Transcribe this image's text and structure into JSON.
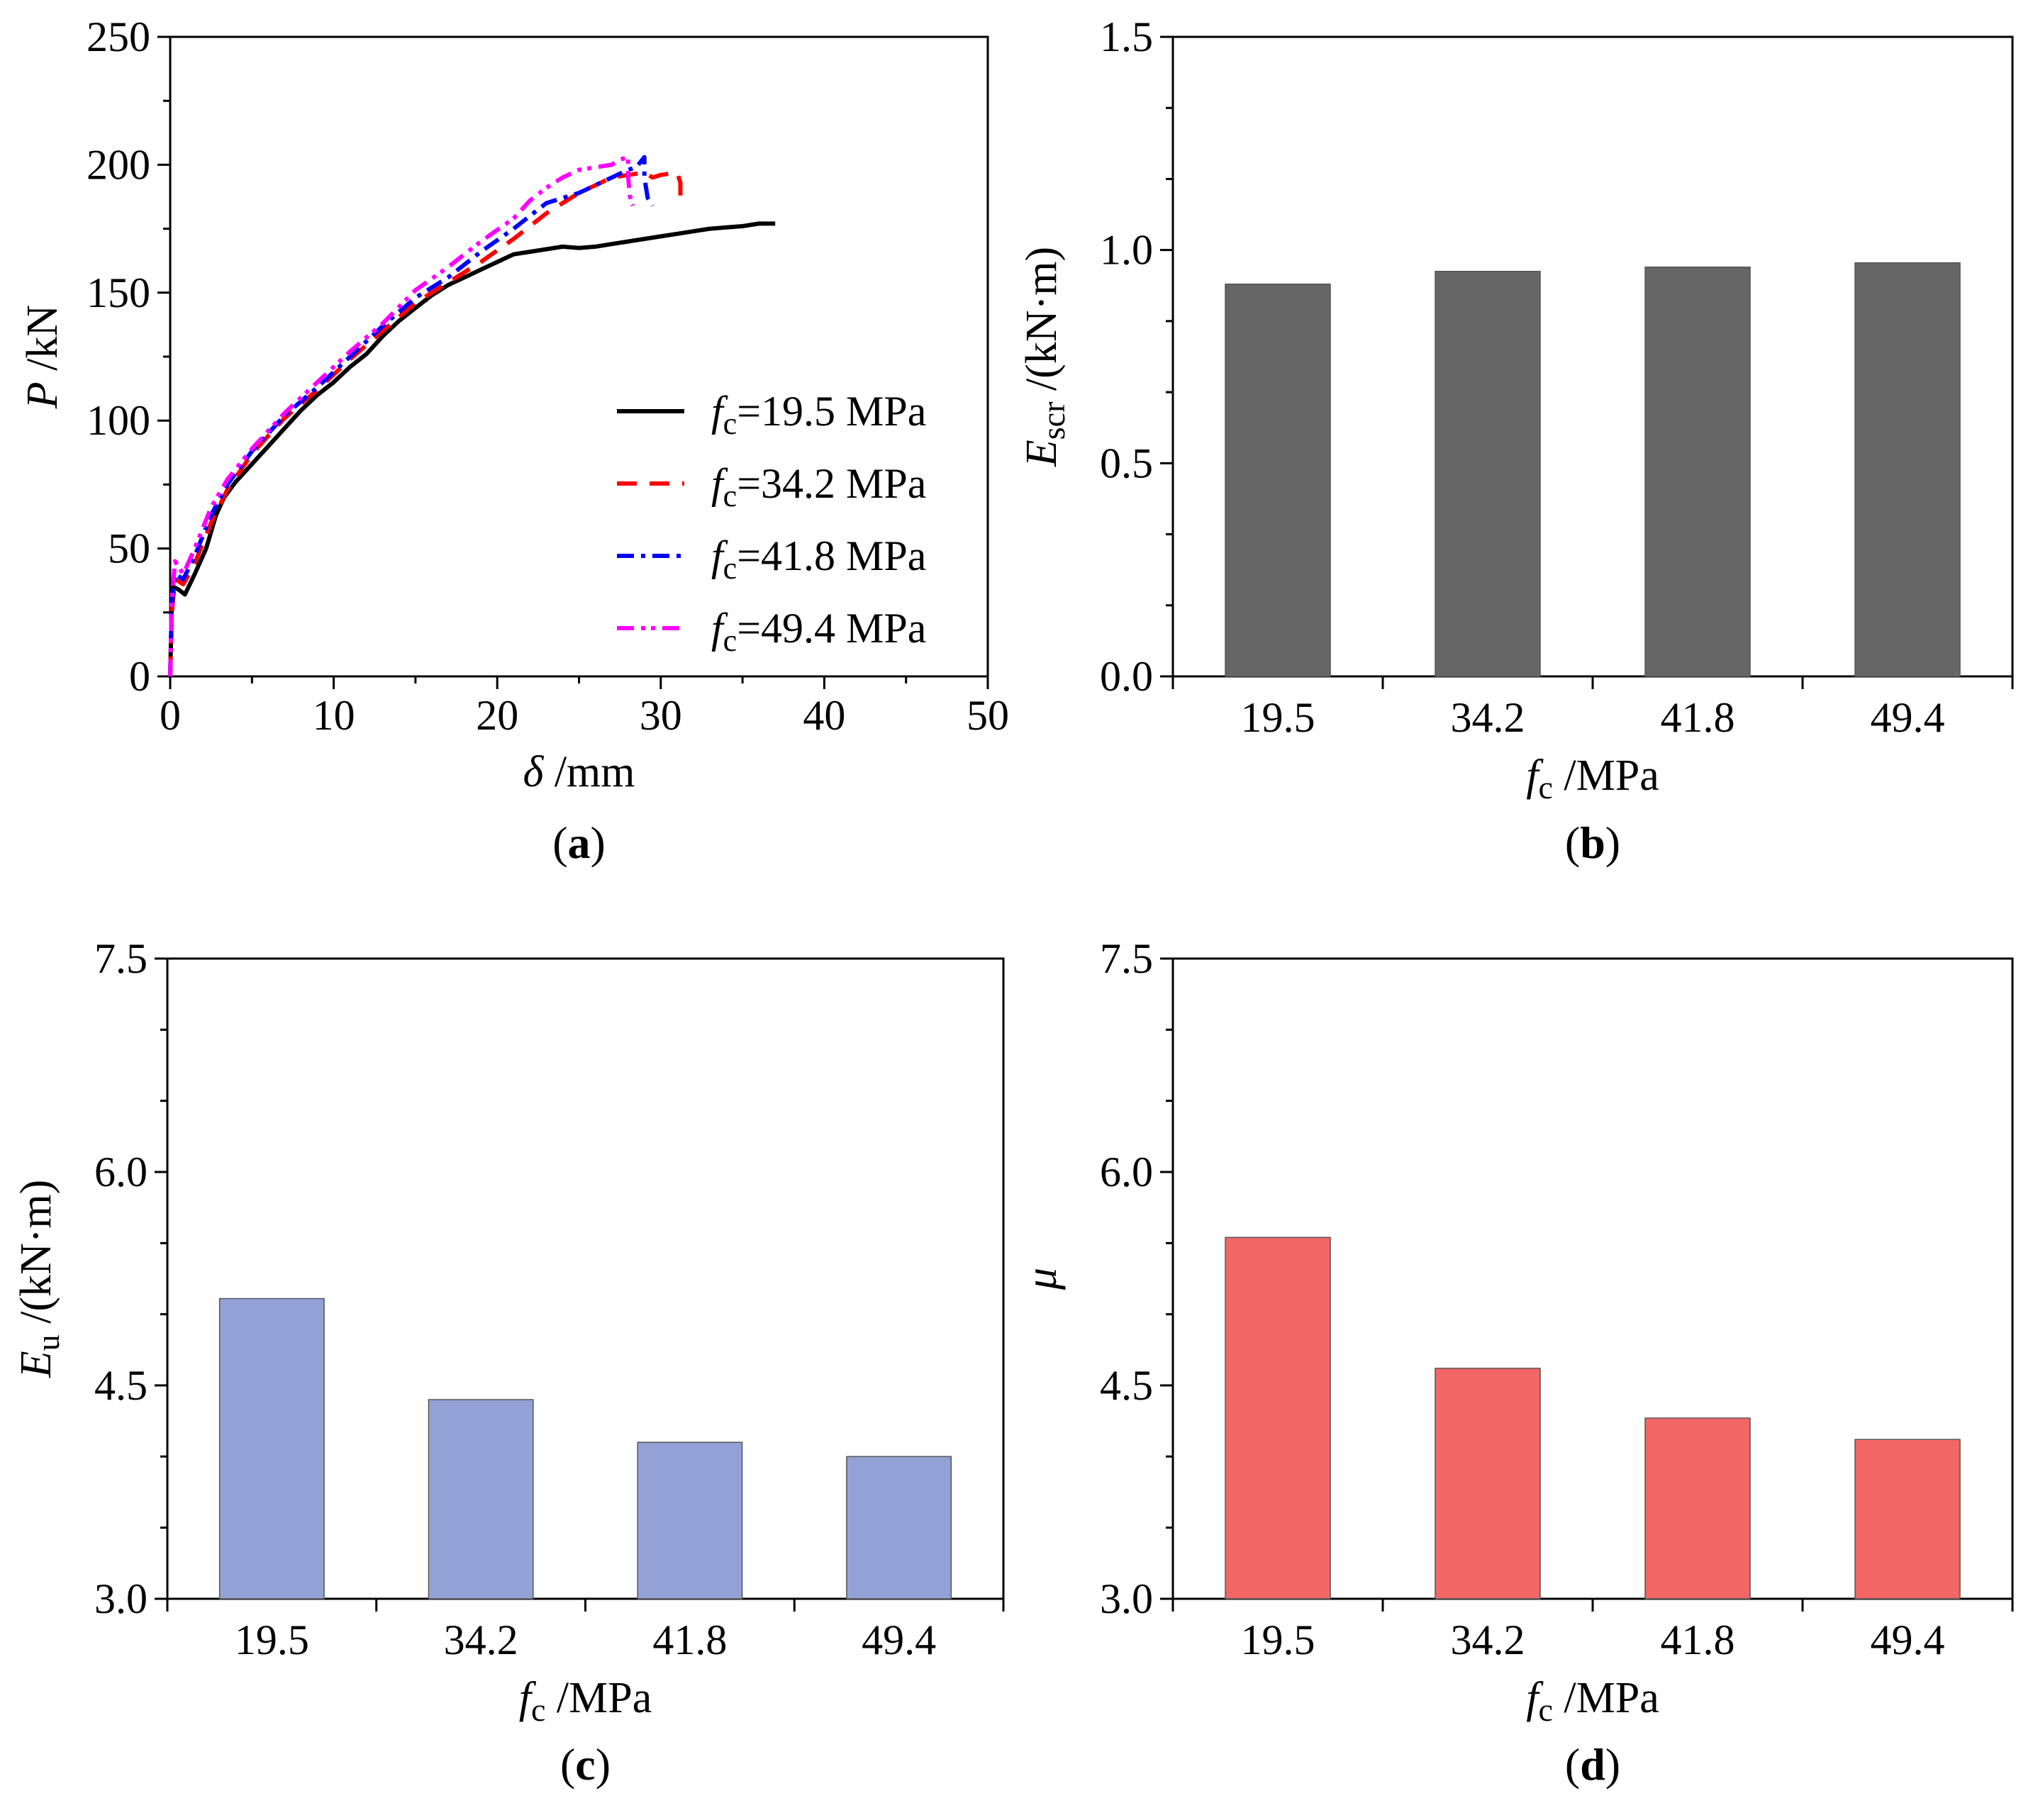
{
  "chart_data": [
    {
      "panel": "a",
      "panel_label": "a",
      "type": "line",
      "xlabel": {
        "symbol": "δ",
        "unit": " /mm"
      },
      "ylabel": {
        "symbol": "P",
        "unit": " /kN"
      },
      "xlim": [
        0,
        50
      ],
      "ylim": [
        0,
        250
      ],
      "xticks": [
        "0",
        "10",
        "20",
        "30",
        "40",
        "50"
      ],
      "yticks": [
        "0",
        "50",
        "100",
        "150",
        "200",
        "250"
      ],
      "legend_position": "bottom-right",
      "series": [
        {
          "name": "fc=19.5 MPa",
          "sym": "f",
          "sub": "c",
          "val": "=19.5 MPa",
          "color": "#000000",
          "dash": "solid",
          "points": [
            [
              0,
              0
            ],
            [
              0.1,
              28
            ],
            [
              0.2,
              35
            ],
            [
              0.5,
              34
            ],
            [
              0.9,
              32
            ],
            [
              1.5,
              40
            ],
            [
              2.2,
              50
            ],
            [
              2.8,
              63
            ],
            [
              3.3,
              70
            ],
            [
              4,
              76
            ],
            [
              5,
              83
            ],
            [
              6,
              90
            ],
            [
              7,
              97
            ],
            [
              8,
              104
            ],
            [
              9,
              110
            ],
            [
              10,
              115
            ],
            [
              11,
              121
            ],
            [
              12,
              126
            ],
            [
              13,
              133
            ],
            [
              14,
              139
            ],
            [
              15,
              144
            ],
            [
              16,
              149
            ],
            [
              17,
              153
            ],
            [
              18,
              156
            ],
            [
              19,
              159
            ],
            [
              20,
              162
            ],
            [
              21,
              165
            ],
            [
              22,
              166
            ],
            [
              23,
              167
            ],
            [
              24,
              168
            ],
            [
              25,
              167.5
            ],
            [
              26,
              168
            ],
            [
              27,
              169
            ],
            [
              28,
              170
            ],
            [
              29,
              171
            ],
            [
              30,
              172
            ],
            [
              31,
              173
            ],
            [
              32,
              174
            ],
            [
              33,
              175
            ],
            [
              34,
              175.5
            ],
            [
              35,
              176
            ],
            [
              36,
              177
            ],
            [
              37,
              177
            ]
          ]
        },
        {
          "name": "fc=34.2 MPa",
          "sym": "f",
          "sub": "c",
          "val": "=34.2 MPa",
          "color": "#ff0000",
          "dash": "28,18",
          "points": [
            [
              0,
              0
            ],
            [
              0.1,
              25
            ],
            [
              0.3,
              38
            ],
            [
              0.8,
              36
            ],
            [
              1.5,
              44
            ],
            [
              2.5,
              60
            ],
            [
              3.5,
              73
            ],
            [
              5,
              87
            ],
            [
              7,
              101
            ],
            [
              9,
              112
            ],
            [
              11,
              124
            ],
            [
              13,
              135
            ],
            [
              15,
              146
            ],
            [
              17,
              154
            ],
            [
              19,
              162
            ],
            [
              21,
              171
            ],
            [
              22,
              176
            ],
            [
              23,
              181
            ],
            [
              24,
              185
            ],
            [
              25,
              189
            ],
            [
              26,
              192
            ],
            [
              27,
              195
            ],
            [
              28,
              196
            ],
            [
              29,
              197
            ],
            [
              29.5,
              195
            ],
            [
              30,
              196
            ],
            [
              31,
              197
            ],
            [
              31.2,
              193
            ],
            [
              31.2,
              185
            ]
          ]
        },
        {
          "name": "fc=41.8 MPa",
          "sym": "f",
          "sub": "c",
          "val": "=41.8 MPa",
          "color": "#0000ff",
          "dash": "24,10,6,10",
          "points": [
            [
              0,
              0
            ],
            [
              0.1,
              28
            ],
            [
              0.3,
              40
            ],
            [
              0.8,
              38
            ],
            [
              1.5,
              47
            ],
            [
              2.5,
              63
            ],
            [
              3.5,
              75
            ],
            [
              5,
              88
            ],
            [
              7,
              102
            ],
            [
              9,
              113
            ],
            [
              11,
              125
            ],
            [
              13,
              137
            ],
            [
              15,
              148
            ],
            [
              17,
              156
            ],
            [
              19,
              166
            ],
            [
              21,
              175
            ],
            [
              22,
              180
            ],
            [
              23,
              185
            ],
            [
              24,
              187
            ],
            [
              25,
              189
            ],
            [
              26,
              192
            ],
            [
              27,
              195
            ],
            [
              28,
              198
            ],
            [
              28.5,
              199
            ],
            [
              29,
              203
            ],
            [
              29,
              195
            ],
            [
              29.2,
              187
            ],
            [
              29.5,
              184
            ]
          ]
        },
        {
          "name": "fc=49.4 MPa",
          "sym": "f",
          "sub": "c",
          "val": "=49.4 MPa",
          "color": "#ff00ff",
          "dash": "24,10,6,8,6,10",
          "points": [
            [
              0,
              0
            ],
            [
              0.1,
              30
            ],
            [
              0.3,
              45
            ],
            [
              0.8,
              40
            ],
            [
              1.5,
              50
            ],
            [
              2.5,
              66
            ],
            [
              3.5,
              77
            ],
            [
              5,
              89
            ],
            [
              7,
              103
            ],
            [
              9,
              115
            ],
            [
              11,
              127
            ],
            [
              13,
              138
            ],
            [
              15,
              151
            ],
            [
              17,
              160
            ],
            [
              19,
              170
            ],
            [
              21,
              179
            ],
            [
              22,
              186
            ],
            [
              23,
              191
            ],
            [
              24,
              195
            ],
            [
              25,
              198
            ],
            [
              26,
              199
            ],
            [
              27,
              200
            ],
            [
              27.5,
              202
            ],
            [
              28,
              203
            ],
            [
              28,
              196
            ],
            [
              28.1,
              188
            ],
            [
              28.3,
              184
            ]
          ]
        }
      ]
    },
    {
      "panel": "b",
      "panel_label": "b",
      "type": "bar",
      "categories": [
        "19.5",
        "34.2",
        "41.8",
        "49.4"
      ],
      "values": [
        0.92,
        0.95,
        0.96,
        0.97
      ],
      "ylim": [
        0,
        1.5
      ],
      "yticks": [
        "0.0",
        "0.5",
        "1.0",
        "1.5"
      ],
      "xlabel": {
        "symbol": "f",
        "sub": "c",
        "unit": " /MPa"
      },
      "ylabel": {
        "symbol": "E",
        "sub": "scr",
        "unit": " /(kN·m)"
      },
      "color": "#666666"
    },
    {
      "panel": "c",
      "panel_label": "c",
      "type": "bar",
      "categories": [
        "19.5",
        "34.2",
        "41.8",
        "49.4"
      ],
      "values": [
        5.11,
        4.4,
        4.1,
        4.0
      ],
      "ylim": [
        3.0,
        7.5
      ],
      "yticks": [
        "3.0",
        "4.5",
        "6.0",
        "7.5"
      ],
      "xlabel": {
        "symbol": "f",
        "sub": "c",
        "unit": " /MPa"
      },
      "ylabel": {
        "symbol": "E",
        "sub": "u",
        "unit": " /(kN·m)"
      },
      "color": "#93a2d6"
    },
    {
      "panel": "d",
      "panel_label": "d",
      "type": "bar",
      "categories": [
        "19.5",
        "34.2",
        "41.8",
        "49.4"
      ],
      "values": [
        5.54,
        4.62,
        4.27,
        4.12
      ],
      "ylim": [
        3.0,
        7.5
      ],
      "yticks": [
        "3.0",
        "4.5",
        "6.0",
        "7.5"
      ],
      "xlabel": {
        "symbol": "f",
        "sub": "c",
        "unit": " /MPa"
      },
      "ylabel": {
        "symbol": "μ",
        "sub": "",
        "unit": ""
      },
      "color": "#f26666"
    }
  ]
}
